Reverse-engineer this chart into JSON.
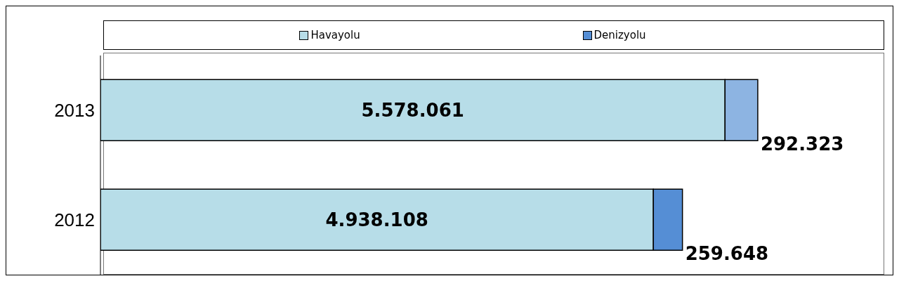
{
  "chart_data": {
    "type": "bar",
    "orientation": "horizontal",
    "stacked": true,
    "categories": [
      "2013",
      "2012"
    ],
    "series": [
      {
        "name": "Havayolu",
        "color": "#b7dde8",
        "values": [
          5578061,
          4938108
        ],
        "value_labels": [
          "5.578.061",
          "4.938.108"
        ]
      },
      {
        "name": "Denizyolu",
        "color": "#558ed5",
        "colors": [
          "#8db4e2",
          "#558ed5"
        ],
        "values": [
          292323,
          259648
        ],
        "value_labels": [
          "292.323",
          "259.648"
        ]
      }
    ],
    "xlim": [
      0,
      7000000
    ],
    "tick_labels": "y",
    "legend": "top"
  }
}
